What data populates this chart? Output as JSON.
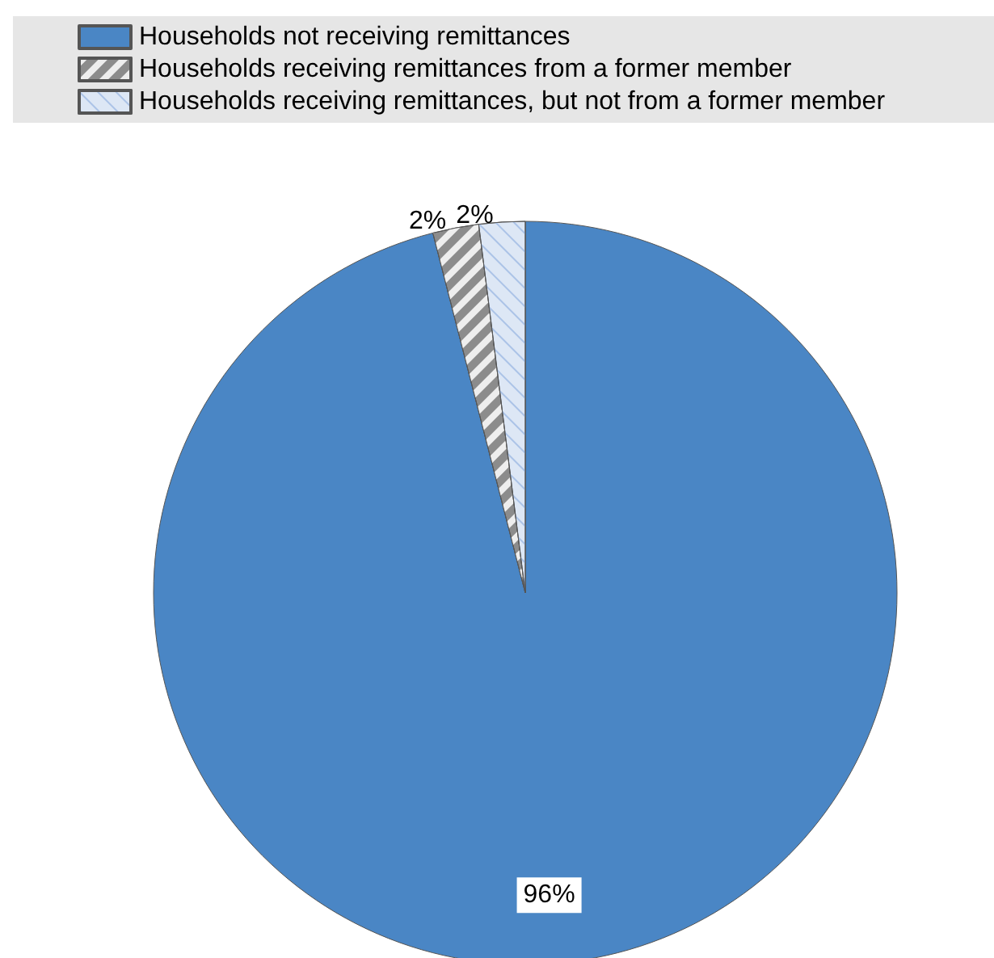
{
  "chart_data": {
    "type": "pie",
    "categories": [
      "Households not receiving remittances",
      "Households receiving remittances from a former member",
      "Households receiving remittances, but not from a former member"
    ],
    "values": [
      96,
      2,
      2
    ],
    "colors": [
      "#4a86c5",
      "#8c8c8c",
      "#dde7f5"
    ],
    "value_labels": [
      "96%",
      "2%",
      "2%"
    ],
    "legend": "top left"
  }
}
